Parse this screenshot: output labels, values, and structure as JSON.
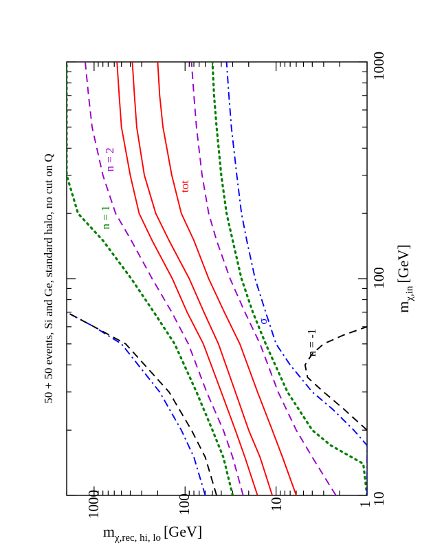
{
  "chart_data": {
    "type": "line",
    "orientation": "rotated-90-ccw",
    "title": "50 + 50 events, Si and Ge, standard halo, no cut on Q",
    "xlabel": "m",
    "xlabel_sub": "χ,in",
    "xlabel_unit": "[GeV]",
    "ylabel": "m",
    "ylabel_sub": "χ,rec, hi, lo",
    "ylabel_unit": "[GeV]",
    "xscale": "log",
    "yscale": "log",
    "xlim": [
      10,
      1000
    ],
    "ylim": [
      1,
      2000
    ],
    "x_ticks": [
      "10",
      "100",
      "1000"
    ],
    "y_ticks": [
      "1",
      "10",
      "100",
      "1000"
    ],
    "colors": {
      "red": "#ff0000",
      "purple": "#9900cc",
      "green": "#008000",
      "blue": "#0000ff",
      "black": "#000000"
    },
    "series": [
      {
        "name": "tot (upper)",
        "color": "#ff0000",
        "style": "solid",
        "x": [
          10,
          15,
          20,
          30,
          50,
          70,
          100,
          150,
          200,
          300,
          500,
          700,
          1000
        ],
        "y": [
          16,
          22,
          28,
          40,
          63,
          95,
          138,
          230,
          320,
          400,
          500,
          530,
          560
        ]
      },
      {
        "name": "tot (lower)",
        "color": "#ff0000",
        "style": "solid",
        "x": [
          10,
          15,
          20,
          30,
          50,
          70,
          100,
          150,
          200,
          300,
          500,
          700,
          1000
        ],
        "y": [
          6.0,
          8.5,
          11,
          16,
          25,
          37,
          55,
          80,
          110,
          140,
          175,
          190,
          200
        ]
      },
      {
        "name": "tot (middle)",
        "color": "#ff0000",
        "style": "solid",
        "x": [
          10,
          15,
          20,
          30,
          50,
          70,
          100,
          150,
          200,
          300,
          500,
          700,
          1000
        ],
        "y": [
          11,
          15,
          20,
          28,
          43,
          62,
          90,
          150,
          210,
          280,
          340,
          360,
          380
        ]
      },
      {
        "name": "n = 2 (upper)",
        "color": "#9900cc",
        "style": "dashed",
        "x": [
          10,
          15,
          20,
          30,
          50,
          70,
          100,
          150,
          200,
          300,
          500,
          700,
          1000
        ],
        "y": [
          23,
          30,
          38,
          58,
          92,
          140,
          230,
          390,
          580,
          800,
          1050,
          1150,
          1250
        ]
      },
      {
        "name": "n = 2 (lower)",
        "color": "#9900cc",
        "style": "dashed",
        "x": [
          10,
          15,
          20,
          30,
          50,
          70,
          100,
          150,
          200,
          300,
          500,
          700,
          1000
        ],
        "y": [
          2.2,
          4.0,
          6.0,
          9.5,
          15,
          22,
          32,
          45,
          55,
          65,
          75,
          80,
          85
        ]
      },
      {
        "name": "n = 1 (upper)",
        "color": "#008000",
        "style": "dotted",
        "x": [
          10,
          15,
          20,
          30,
          50,
          70,
          100,
          150,
          200,
          300,
          500,
          700,
          1000
        ],
        "y": [
          30,
          38,
          50,
          75,
          130,
          220,
          390,
          800,
          1500,
          2000,
          2000,
          2000,
          2000
        ]
      },
      {
        "name": "n = 1 (lower)",
        "color": "#008000",
        "style": "dotted",
        "x": [
          10,
          14,
          17,
          20,
          30,
          50,
          70,
          100,
          150,
          200,
          300,
          500,
          700,
          1000
        ],
        "y": [
          1.0,
          1.1,
          2.5,
          4.0,
          7.5,
          13,
          18,
          24,
          30,
          35,
          40,
          45,
          48,
          50
        ]
      },
      {
        "name": "σ (upper)",
        "color": "#0000ff",
        "style": "dashdot",
        "x": [
          10,
          15,
          20,
          30,
          50,
          60,
          70
        ],
        "y": [
          60,
          80,
          110,
          190,
          500,
          1000,
          2000
        ]
      },
      {
        "name": "σ (lower)",
        "color": "#0000ff",
        "style": "dashdot",
        "x": [
          10,
          17,
          20,
          25,
          30,
          40,
          50,
          70,
          100,
          150,
          200,
          300,
          500,
          700,
          1000
        ],
        "y": [
          1.0,
          1.0,
          1.4,
          2.4,
          4.0,
          7.0,
          10,
          13,
          17,
          21,
          24,
          27,
          31,
          33,
          35
        ]
      },
      {
        "name": "n = -1 (upper)",
        "color": "#000000",
        "style": "dashed",
        "x": [
          10,
          15,
          20,
          30,
          50,
          60,
          70
        ],
        "y": [
          45,
          60,
          85,
          150,
          450,
          1000,
          2000
        ]
      },
      {
        "name": "n = -1 (lower)",
        "color": "#000000",
        "style": "dashed",
        "x": [
          20,
          25,
          30,
          35,
          40,
          45,
          50,
          55,
          60
        ],
        "y": [
          1.0,
          1.8,
          3.0,
          4.5,
          4.8,
          4.0,
          3.0,
          1.8,
          1.0
        ]
      }
    ],
    "annotations": [
      {
        "text": "n = 2",
        "color": "#9900cc"
      },
      {
        "text": "n = 1",
        "color": "#008000"
      },
      {
        "text": "tot",
        "color": "#ff0000"
      },
      {
        "text": "σ",
        "color": "#0000ff"
      },
      {
        "text": "n = -1",
        "color": "#000000"
      }
    ]
  }
}
